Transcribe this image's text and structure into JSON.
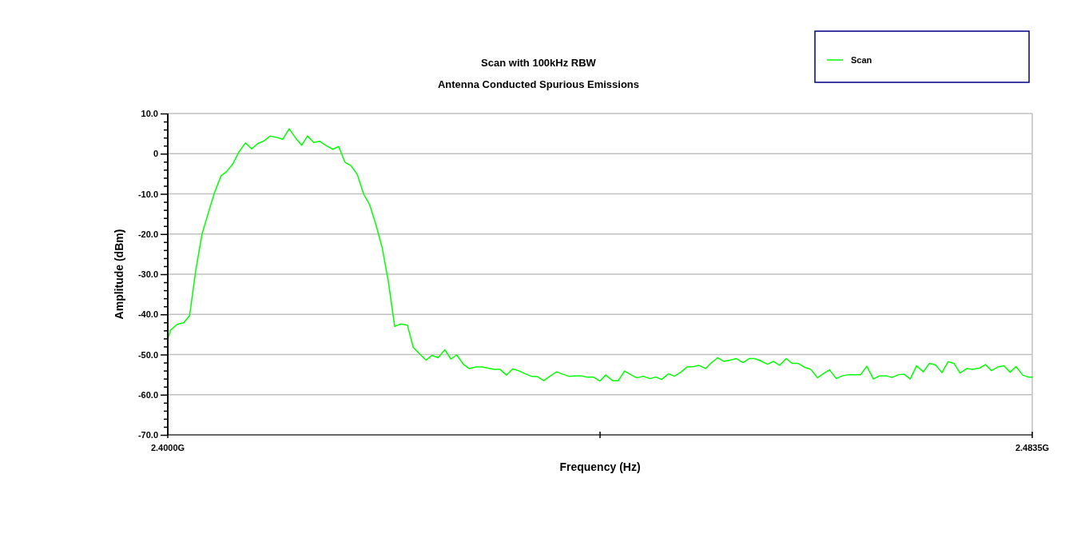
{
  "chart_data": {
    "type": "line",
    "title": "Scan with 100kHz RBW",
    "subtitle": "Antenna Conducted Spurious Emissions",
    "xlabel": "Frequency (Hz)",
    "ylabel": "Amplitude (dBm)",
    "xlim": [
      2.4,
      2.4835
    ],
    "xticks": [
      {
        "value": 2.4,
        "label": "2.4000G"
      },
      {
        "value": 2.44175,
        "label": null
      },
      {
        "value": 2.4835,
        "label": "2.4835G"
      }
    ],
    "ylim": [
      -70,
      10
    ],
    "yticks": [
      {
        "value": 10,
        "label": "10.0"
      },
      {
        "value": 0,
        "label": "0"
      },
      {
        "value": -10,
        "label": "-10.0"
      },
      {
        "value": -20,
        "label": "-20.0"
      },
      {
        "value": -30,
        "label": "-30.0"
      },
      {
        "value": -40,
        "label": "-40.0"
      },
      {
        "value": -50,
        "label": "-50.0"
      },
      {
        "value": -60,
        "label": "-60.0"
      },
      {
        "value": -70,
        "label": "-70.0"
      },
      {
        "value": 8,
        "label": null
      },
      {
        "value": 6,
        "label": null
      },
      {
        "value": 4,
        "label": null
      },
      {
        "value": 2,
        "label": null
      },
      {
        "value": -2,
        "label": null
      },
      {
        "value": -4,
        "label": null
      },
      {
        "value": -6,
        "label": null
      },
      {
        "value": -8,
        "label": null
      },
      {
        "value": -12,
        "label": null
      },
      {
        "value": -14,
        "label": null
      },
      {
        "value": -16,
        "label": null
      },
      {
        "value": -18,
        "label": null
      },
      {
        "value": -22,
        "label": null
      },
      {
        "value": -24,
        "label": null
      },
      {
        "value": -26,
        "label": null
      },
      {
        "value": -28,
        "label": null
      },
      {
        "value": -32,
        "label": null
      },
      {
        "value": -34,
        "label": null
      },
      {
        "value": -36,
        "label": null
      },
      {
        "value": -38,
        "label": null
      },
      {
        "value": -42,
        "label": null
      },
      {
        "value": -44,
        "label": null
      },
      {
        "value": -46,
        "label": null
      },
      {
        "value": -48,
        "label": null
      },
      {
        "value": -52,
        "label": null
      },
      {
        "value": -54,
        "label": null
      },
      {
        "value": -56,
        "label": null
      },
      {
        "value": -58,
        "label": null
      },
      {
        "value": -62,
        "label": null
      },
      {
        "value": -64,
        "label": null
      },
      {
        "value": -66,
        "label": null
      },
      {
        "value": -68,
        "label": null
      }
    ],
    "grid": "y",
    "legend": "top right",
    "marker": "none",
    "line_style": "solid",
    "series": [
      {
        "name": "Scan",
        "color": "#00ff00",
        "x": [
          2.4,
          2.40025,
          2.4009,
          2.40154,
          2.40211,
          2.4027,
          2.4033,
          2.40391,
          2.4045,
          2.40515,
          2.40566,
          2.40625,
          2.40687,
          2.40751,
          2.4081,
          2.40874,
          2.40931,
          2.4099,
          2.41047,
          2.41111,
          2.41173,
          2.41235,
          2.41294,
          2.4135,
          2.4141,
          2.41466,
          2.4153,
          2.41595,
          2.41651,
          2.41711,
          2.4177,
          2.41831,
          2.41891,
          2.4195,
          2.42012,
          2.42071,
          2.4213,
          2.42192,
          2.42251,
          2.42315,
          2.42371,
          2.42431,
          2.42495,
          2.42552,
          2.42611,
          2.42676,
          2.42734,
          2.42791,
          2.42855,
          2.42912,
          2.42976,
          2.43035,
          2.43092,
          2.43151,
          2.4321,
          2.43272,
          2.43331,
          2.43396,
          2.43452,
          2.43511,
          2.43571,
          2.43632,
          2.43691,
          2.43756,
          2.43815,
          2.43872,
          2.43936,
          2.43992,
          2.44051,
          2.44111,
          2.44173,
          2.44231,
          2.44296,
          2.44352,
          2.44412,
          2.44471,
          2.44532,
          2.44592,
          2.44656,
          2.44713,
          2.44771,
          2.44836,
          2.44893,
          2.4496,
          2.45016,
          2.4508,
          2.45132,
          2.45196,
          2.45248,
          2.45312,
          2.45371,
          2.45433,
          2.45492,
          2.45556,
          2.45616,
          2.45667,
          2.45728,
          2.45793,
          2.45852,
          2.45911,
          2.45973,
          2.46032,
          2.46089,
          2.46153,
          2.46212,
          2.46276,
          2.46341,
          2.46392,
          2.46457,
          2.46516,
          2.46577,
          2.46637,
          2.46693,
          2.46752,
          2.46816,
          2.46876,
          2.46938,
          2.46997,
          2.47061,
          2.47113,
          2.47171,
          2.47233,
          2.47298,
          2.47357,
          2.47416,
          2.47478,
          2.47537,
          2.47594,
          2.47653,
          2.47717,
          2.47776,
          2.47838,
          2.47897,
          2.47956,
          2.48018,
          2.48077,
          2.48136,
          2.48193,
          2.48257,
          2.48309,
          2.4835
        ],
        "values": [
          -46.3,
          -44.0,
          -42.5,
          -42.1,
          -40.3,
          -29.1,
          -20.1,
          -14.8,
          -9.8,
          -5.5,
          -4.5,
          -2.7,
          0.4,
          2.7,
          1.2,
          2.6,
          3.2,
          4.4,
          4.1,
          3.6,
          6.2,
          3.9,
          2.1,
          4.4,
          2.8,
          3.1,
          2.0,
          1.1,
          1.8,
          -2.1,
          -3.0,
          -5.2,
          -10.0,
          -12.7,
          -17.8,
          -23.4,
          -31.7,
          -43.0,
          -42.4,
          -42.7,
          -48.2,
          -49.8,
          -51.4,
          -50.2,
          -50.8,
          -48.8,
          -51.1,
          -50.1,
          -52.4,
          -53.5,
          -53.1,
          -53.1,
          -53.4,
          -53.7,
          -53.7,
          -55.1,
          -53.6,
          -54.1,
          -54.8,
          -55.4,
          -55.5,
          -56.5,
          -55.4,
          -54.3,
          -54.9,
          -55.4,
          -55.3,
          -55.3,
          -55.6,
          -55.6,
          -56.6,
          -55.1,
          -56.5,
          -56.5,
          -54.1,
          -55.0,
          -55.8,
          -55.4,
          -56.0,
          -55.6,
          -56.2,
          -54.8,
          -55.4,
          -54.3,
          -53.1,
          -53.0,
          -52.7,
          -53.5,
          -52.1,
          -50.8,
          -51.7,
          -51.4,
          -51.0,
          -52.0,
          -51.0,
          -51.0,
          -51.6,
          -52.4,
          -51.7,
          -52.7,
          -51.0,
          -52.2,
          -52.2,
          -53.2,
          -53.7,
          -55.8,
          -54.6,
          -53.8,
          -56.0,
          -55.3,
          -55.0,
          -55.0,
          -55.0,
          -52.9,
          -56.1,
          -55.3,
          -55.3,
          -55.7,
          -55.0,
          -54.9,
          -56.1,
          -52.8,
          -54.3,
          -52.2,
          -52.6,
          -54.5,
          -51.8,
          -52.2,
          -54.6,
          -53.5,
          -53.7,
          -53.4,
          -52.5,
          -54.0,
          -53.1,
          -52.8,
          -54.4,
          -53.0,
          -55.1,
          -55.6,
          -55.6
        ]
      }
    ]
  }
}
